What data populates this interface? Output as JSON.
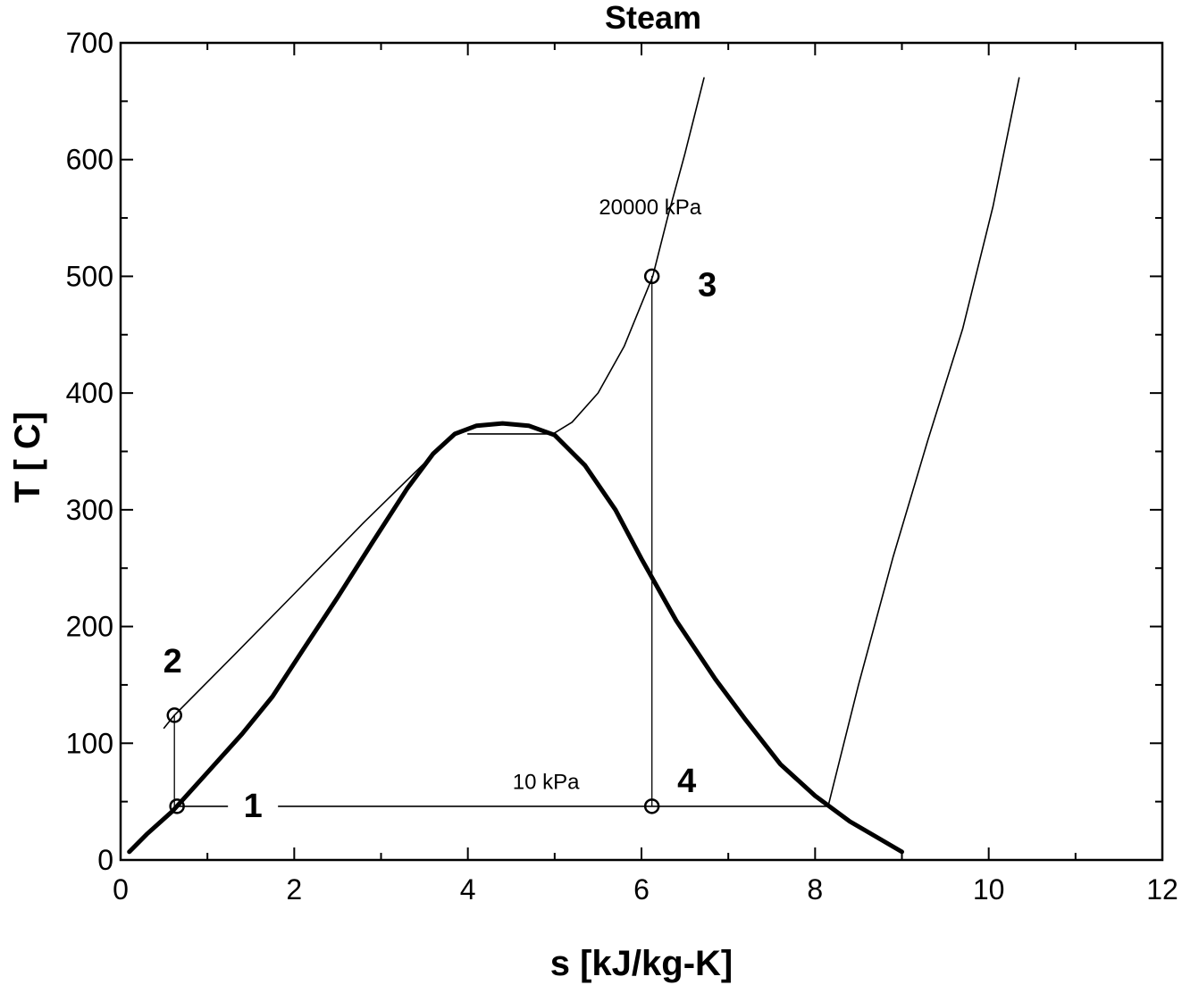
{
  "chart_data": {
    "type": "line",
    "title": "Steam",
    "xlabel": "s [kJ/kg-K]",
    "ylabel": "T [ C]",
    "xlim": [
      0,
      12
    ],
    "ylim": [
      0,
      700
    ],
    "xticks": [
      0,
      2,
      4,
      6,
      8,
      10,
      12
    ],
    "yticks": [
      0,
      100,
      200,
      300,
      400,
      500,
      600,
      700
    ],
    "grid": false,
    "series": [
      {
        "style": "saturation-dome",
        "points": [
          [
            0.1,
            7
          ],
          [
            0.3,
            22
          ],
          [
            0.6,
            42
          ],
          [
            1.0,
            75
          ],
          [
            1.4,
            108
          ],
          [
            1.75,
            140
          ],
          [
            2.1,
            180
          ],
          [
            2.5,
            225
          ],
          [
            2.9,
            272
          ],
          [
            3.3,
            318
          ],
          [
            3.6,
            348
          ],
          [
            3.85,
            365
          ],
          [
            4.1,
            372
          ],
          [
            4.4,
            374
          ],
          [
            4.7,
            372
          ],
          [
            5.0,
            364
          ],
          [
            5.35,
            338
          ],
          [
            5.7,
            300
          ],
          [
            6.0,
            258
          ],
          [
            6.4,
            205
          ],
          [
            6.85,
            155
          ],
          [
            7.2,
            120
          ],
          [
            7.6,
            82
          ],
          [
            8.0,
            55
          ],
          [
            8.4,
            33
          ],
          [
            8.7,
            20
          ],
          [
            9.0,
            7
          ]
        ]
      },
      {
        "style": "isobar",
        "points": [
          [
            0.5,
            113
          ],
          [
            0.62,
            124
          ],
          [
            1.3,
            175
          ],
          [
            2.0,
            228
          ],
          [
            2.8,
            289
          ],
          [
            3.5,
            340
          ],
          [
            3.87,
            365
          ]
        ]
      },
      {
        "style": "isobar",
        "points": [
          [
            4.0,
            365
          ],
          [
            4.98,
            365
          ],
          [
            5.2,
            375
          ],
          [
            5.5,
            400
          ],
          [
            5.8,
            440
          ],
          [
            6.13,
            500
          ],
          [
            6.3,
            550
          ],
          [
            6.5,
            605
          ],
          [
            6.72,
            670
          ]
        ]
      },
      {
        "style": "isobar",
        "points": [
          [
            0.62,
            46
          ],
          [
            8.15,
            46
          ],
          [
            8.5,
            150
          ],
          [
            8.9,
            260
          ],
          [
            9.3,
            360
          ],
          [
            9.7,
            455
          ],
          [
            10.05,
            560
          ],
          [
            10.35,
            670
          ]
        ]
      },
      {
        "style": "cycle",
        "points": [
          [
            0.62,
            46
          ],
          [
            0.62,
            124
          ]
        ]
      },
      {
        "style": "cycle",
        "points": [
          [
            6.12,
            500
          ],
          [
            6.12,
            46
          ]
        ]
      }
    ],
    "points": [
      {
        "label": "1",
        "s": 0.65,
        "T": 46
      },
      {
        "label": "2",
        "s": 0.62,
        "T": 124
      },
      {
        "label": "3",
        "s": 6.12,
        "T": 500
      },
      {
        "label": "4",
        "s": 6.12,
        "T": 46
      }
    ],
    "annotations": [
      {
        "text": "20000 kPa",
        "s": 6.1,
        "T": 553
      },
      {
        "text": "10 kPa",
        "s": 4.9,
        "T": 61
      }
    ]
  }
}
